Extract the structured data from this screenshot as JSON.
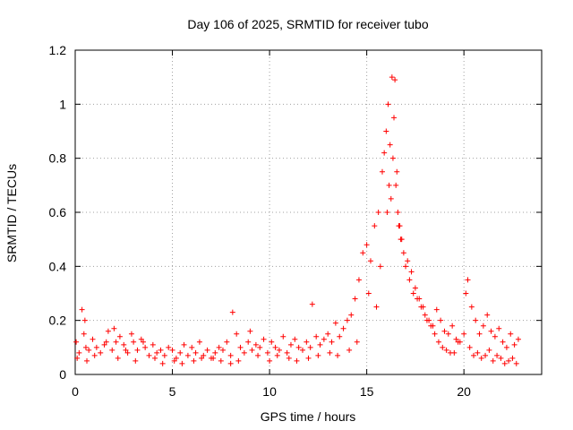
{
  "chart_data": {
    "type": "scatter",
    "title": "Day 106 of 2025, SRMTID for receiver tubo",
    "xlabel": "GPS time / hours",
    "ylabel": "SRMTID / TECUs",
    "xlim": [
      0,
      24
    ],
    "ylim": [
      0,
      1.2
    ],
    "grid": true,
    "marker": "+",
    "x_ticks": [
      0,
      5,
      10,
      15,
      20
    ],
    "x_tick_labels": [
      "0",
      "5",
      "10",
      "15",
      "20"
    ],
    "y_ticks": [
      0,
      0.2,
      0.4,
      0.6,
      0.8,
      1.0,
      1.2
    ],
    "y_tick_labels": [
      "0",
      "0.2",
      "0.4",
      "0.6",
      "0.8",
      "1",
      "1.2"
    ],
    "series": [
      {
        "name": "SRMTID",
        "color": "#ff0000",
        "x": [
          0.05,
          0.2,
          0.35,
          0.45,
          0.55,
          0.7,
          0.9,
          1.1,
          1.3,
          1.5,
          1.7,
          1.9,
          2.0,
          2.1,
          2.3,
          2.5,
          2.7,
          2.9,
          3.0,
          3.2,
          3.4,
          3.6,
          3.8,
          4.0,
          4.2,
          4.4,
          4.6,
          4.8,
          5.0,
          5.2,
          5.4,
          5.6,
          5.8,
          6.0,
          6.2,
          6.4,
          6.6,
          6.8,
          7.0,
          7.2,
          7.4,
          7.6,
          7.8,
          8.0,
          8.1,
          8.3,
          8.5,
          8.7,
          8.9,
          9.1,
          9.3,
          9.5,
          9.7,
          9.9,
          10.1,
          10.3,
          10.5,
          10.7,
          10.9,
          11.1,
          11.3,
          11.5,
          11.7,
          11.9,
          12.1,
          12.2,
          12.4,
          12.6,
          12.8,
          13.0,
          13.2,
          13.4,
          13.6,
          13.8,
          14.0,
          14.2,
          14.4,
          14.6,
          14.8,
          15.0,
          15.2,
          15.4,
          15.6,
          15.8,
          15.9,
          16.0,
          16.1,
          16.2,
          16.3,
          16.4,
          16.5,
          16.6,
          16.7,
          16.8,
          16.9,
          17.0,
          17.2,
          17.4,
          17.6,
          17.8,
          18.0,
          18.2,
          18.4,
          18.6,
          18.8,
          19.0,
          19.2,
          19.4,
          19.6,
          19.8,
          20.0,
          20.1,
          20.2,
          20.4,
          20.6,
          20.8,
          21.0,
          21.2,
          21.4,
          21.6,
          21.8,
          22.0,
          22.2,
          22.4,
          22.6,
          22.8,
          0.1,
          0.5,
          0.6,
          1.0,
          1.6,
          2.2,
          2.6,
          3.1,
          3.5,
          4.1,
          4.5,
          5.1,
          5.5,
          6.1,
          6.5,
          7.1,
          7.5,
          8.0,
          8.4,
          9.0,
          9.4,
          10.0,
          10.4,
          11.0,
          11.4,
          12.0,
          12.5,
          13.1,
          13.5,
          14.1,
          14.5,
          15.1,
          15.5,
          15.7,
          16.05,
          16.15,
          16.25,
          16.35,
          16.45,
          16.55,
          16.65,
          16.75,
          17.1,
          17.3,
          17.5,
          17.7,
          17.9,
          18.1,
          18.3,
          18.5,
          18.7,
          18.9,
          19.1,
          19.3,
          19.5,
          19.7,
          20.3,
          20.5,
          20.7,
          20.9,
          21.1,
          21.3,
          21.5,
          21.7,
          21.9,
          22.1,
          22.3,
          22.5,
          22.7
        ],
        "y": [
          0.12,
          0.08,
          0.24,
          0.15,
          0.1,
          0.09,
          0.13,
          0.1,
          0.08,
          0.11,
          0.16,
          0.09,
          0.17,
          0.12,
          0.14,
          0.11,
          0.08,
          0.15,
          0.12,
          0.09,
          0.13,
          0.1,
          0.07,
          0.11,
          0.08,
          0.09,
          0.07,
          0.1,
          0.09,
          0.06,
          0.08,
          0.11,
          0.07,
          0.1,
          0.08,
          0.12,
          0.07,
          0.09,
          0.06,
          0.08,
          0.1,
          0.09,
          0.12,
          0.07,
          0.23,
          0.15,
          0.1,
          0.08,
          0.12,
          0.09,
          0.11,
          0.1,
          0.13,
          0.08,
          0.12,
          0.1,
          0.09,
          0.14,
          0.08,
          0.11,
          0.13,
          0.1,
          0.09,
          0.12,
          0.1,
          0.26,
          0.14,
          0.11,
          0.13,
          0.15,
          0.12,
          0.19,
          0.14,
          0.17,
          0.2,
          0.22,
          0.28,
          0.35,
          0.45,
          0.48,
          0.42,
          0.55,
          0.6,
          0.75,
          0.82,
          0.9,
          1.0,
          0.85,
          1.1,
          0.95,
          0.7,
          0.6,
          0.55,
          0.5,
          0.45,
          0.4,
          0.35,
          0.3,
          0.28,
          0.25,
          0.22,
          0.2,
          0.18,
          0.24,
          0.2,
          0.16,
          0.15,
          0.18,
          0.13,
          0.12,
          0.15,
          0.3,
          0.35,
          0.25,
          0.2,
          0.15,
          0.18,
          0.22,
          0.16,
          0.14,
          0.17,
          0.12,
          0.1,
          0.15,
          0.11,
          0.13,
          0.06,
          0.2,
          0.05,
          0.07,
          0.12,
          0.06,
          0.09,
          0.05,
          0.12,
          0.06,
          0.04,
          0.05,
          0.04,
          0.05,
          0.06,
          0.06,
          0.05,
          0.04,
          0.05,
          0.16,
          0.07,
          0.05,
          0.07,
          0.06,
          0.05,
          0.06,
          0.07,
          0.08,
          0.07,
          0.09,
          0.12,
          0.3,
          0.25,
          0.4,
          0.6,
          0.7,
          0.65,
          0.8,
          1.09,
          0.75,
          0.55,
          0.5,
          0.42,
          0.38,
          0.32,
          0.28,
          0.25,
          0.2,
          0.18,
          0.15,
          0.12,
          0.1,
          0.09,
          0.08,
          0.08,
          0.12,
          0.1,
          0.07,
          0.08,
          0.06,
          0.07,
          0.09,
          0.05,
          0.07,
          0.06,
          0.04,
          0.05,
          0.06,
          0.04
        ]
      }
    ]
  }
}
